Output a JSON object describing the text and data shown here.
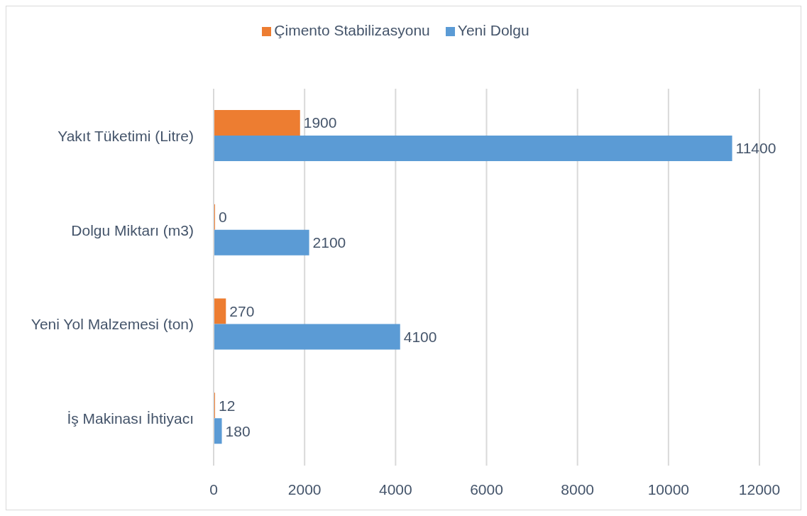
{
  "chart_data": {
    "type": "bar",
    "orientation": "horizontal",
    "categories": [
      "Yakıt Tüketimi (Litre)",
      "Dolgu Miktarı (m3)",
      "Yeni Yol Malzemesi (ton)",
      "İş Makinası İhtiyacı"
    ],
    "series": [
      {
        "name": "Çimento Stabilizasyonu",
        "color": "#ed7d31",
        "values": [
          1900,
          0,
          270,
          12
        ]
      },
      {
        "name": "Yeni Dolgu",
        "color": "#5b9bd5",
        "values": [
          11400,
          2100,
          4100,
          180
        ]
      }
    ],
    "xlim": [
      0,
      12000
    ],
    "xticks": [
      0,
      2000,
      4000,
      6000,
      8000,
      10000,
      12000
    ],
    "data_labels": true,
    "grid": "x",
    "legend": "top"
  }
}
